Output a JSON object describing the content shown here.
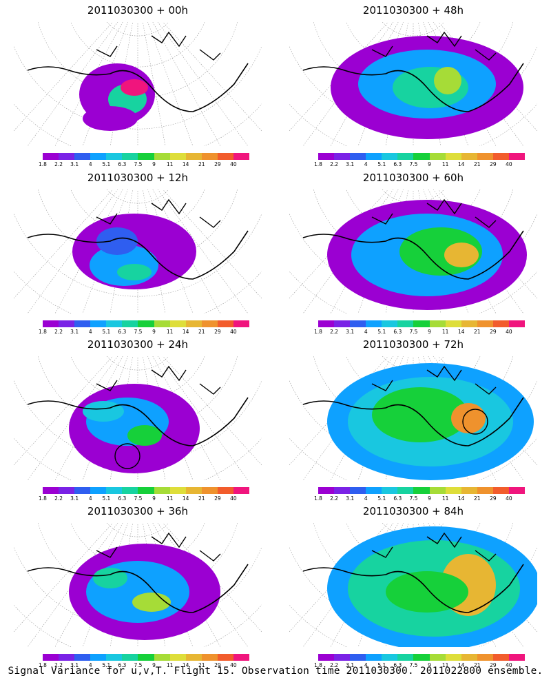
{
  "legend": {
    "levels": [
      "1.8",
      "2.2",
      "3.1",
      "4",
      "5.1",
      "6.3",
      "7.5",
      "9",
      "11",
      "14",
      "21",
      "29",
      "40"
    ],
    "colors": [
      "#9b00d2",
      "#7a22e6",
      "#2f5ef0",
      "#0ea1ff",
      "#19c7e0",
      "#17d3a0",
      "#16d03a",
      "#a6dc37",
      "#dede3a",
      "#e7b633",
      "#ef922d",
      "#f25c2c",
      "#f0157d"
    ]
  },
  "panels": [
    {
      "title": "2011030300 + 00h"
    },
    {
      "title": "2011030300 + 48h"
    },
    {
      "title": "2011030300 + 12h"
    },
    {
      "title": "2011030300 + 60h"
    },
    {
      "title": "2011030300 + 24h"
    },
    {
      "title": "2011030300 + 72h"
    },
    {
      "title": "2011030300 + 36h"
    },
    {
      "title": "2011030300 + 84h"
    }
  ],
  "caption": "Signal Variance for u,v,T. Flight 15. Observation time 2011030300. 2011022800 ensemble.",
  "chart_data": {
    "type": "heatmap",
    "description_levels": "contour levels of signal variance",
    "levels": [
      1.8,
      2.2,
      3.1,
      4,
      5.1,
      6.3,
      7.5,
      9,
      11,
      14,
      21,
      29,
      40
    ],
    "forecast_hours": [
      0,
      48,
      12,
      60,
      24,
      72,
      36,
      84
    ],
    "titles": [
      "2011030300 + 00h",
      "2011030300 + 48h",
      "2011030300 + 12h",
      "2011030300 + 60h",
      "2011030300 + 24h",
      "2011030300 + 72h",
      "2011030300 + 36h",
      "2011030300 + 84h"
    ],
    "markers": {
      "circle_at_hours": [
        24,
        72
      ]
    }
  }
}
